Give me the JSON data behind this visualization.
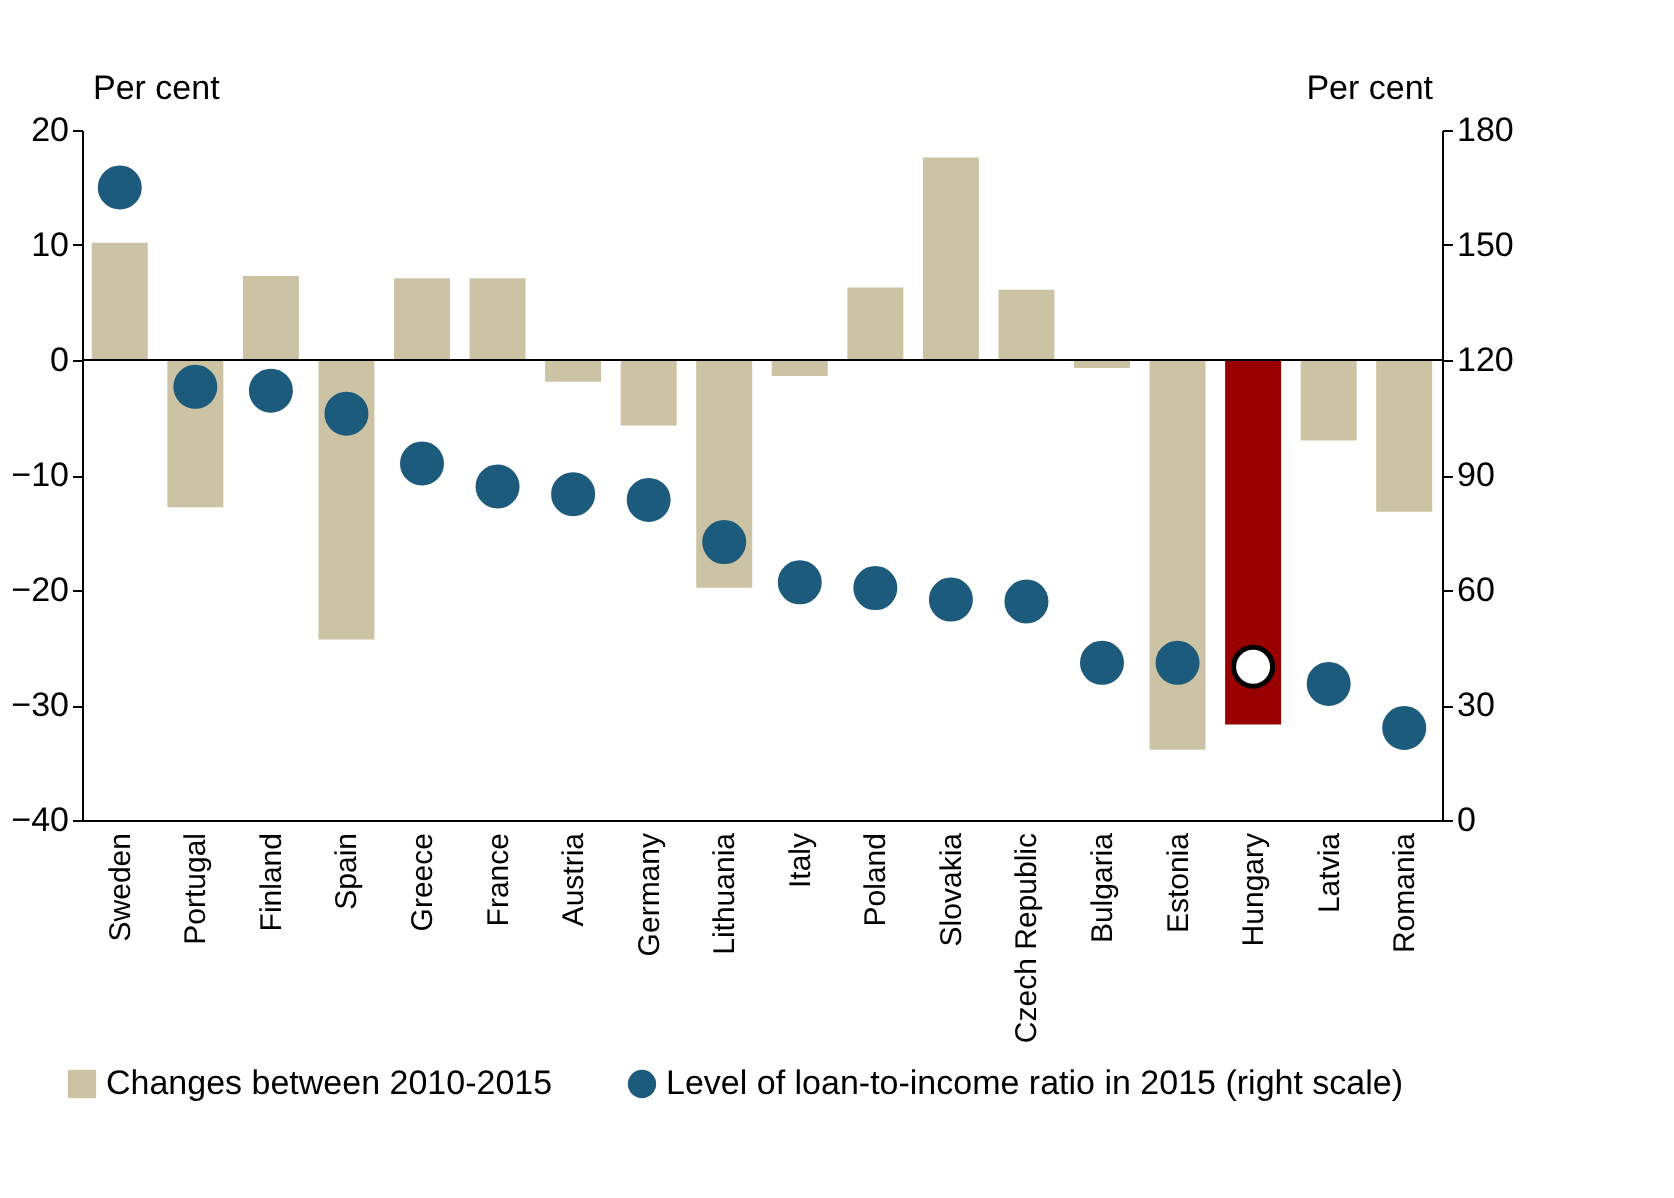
{
  "chart_data": {
    "type": "bar",
    "ylabel": "Per cent",
    "y2label": "Per cent",
    "categories": [
      "Sweden",
      "Portugal",
      "Finland",
      "Spain",
      "Greece",
      "France",
      "Austria",
      "Germany",
      "Lithuania",
      "Italy",
      "Poland",
      "Slovakia",
      "Czech Republic",
      "Bulgaria",
      "Estonia",
      "Hungary",
      "Latvia",
      "Romania"
    ],
    "series": [
      {
        "name": "Changes between 2010-2015",
        "color": "#cbc3a3",
        "colors": [
          "#cbc3a3",
          "#cbc3a3",
          "#cbc3a3",
          "#cbc3a3",
          "#cbc3a3",
          "#cbc3a3",
          "#cbc3a3",
          "#cbc3a3",
          "#cbc3a3",
          "#cbc3a3",
          "#cbc3a3",
          "#cbc3a3",
          "#cbc3a3",
          "#cbc3a3",
          "#cbc3a3",
          "#990000",
          "#cbc3a3",
          "#cbc3a3"
        ],
        "values": [
          10.2,
          -12.8,
          7.3,
          -24.3,
          7.1,
          7.1,
          -1.9,
          -5.7,
          -19.8,
          -1.4,
          6.3,
          17.6,
          6.1,
          -0.7,
          -33.9,
          -31.7,
          -7.0,
          -13.2
        ]
      },
      {
        "name": "Level of loan-to-income ratio in 2015 (right scale)",
        "type": "scatter",
        "axis": "y2",
        "color": "#1d5b7c",
        "colors": [
          "#1d5b7c",
          "#1d5b7c",
          "#1d5b7c",
          "#1d5b7c",
          "#1d5b7c",
          "#1d5b7c",
          "#1d5b7c",
          "#1d5b7c",
          "#1d5b7c",
          "#1d5b7c",
          "#1d5b7c",
          "#1d5b7c",
          "#1d5b7c",
          "#1d5b7c",
          "#1d5b7c",
          "#ffffff",
          "#1d5b7c",
          "#1d5b7c"
        ],
        "values": [
          165,
          113,
          112,
          106,
          93,
          87,
          85,
          83.5,
          72.5,
          62,
          60.5,
          57.5,
          57,
          41,
          41,
          40,
          35.5,
          24
        ]
      }
    ],
    "ylim": [
      -40,
      20
    ],
    "yticks": [
      -40,
      -30,
      -20,
      -10,
      0,
      10,
      20
    ],
    "y2lim": [
      0,
      180
    ],
    "y2ticks": [
      0,
      30,
      60,
      90,
      120,
      150,
      180
    ],
    "ref_lines": [
      {
        "axis": "y",
        "value": 0,
        "color": "#000000"
      }
    ],
    "marker": "circle",
    "grid": false,
    "legend": "bottom"
  }
}
